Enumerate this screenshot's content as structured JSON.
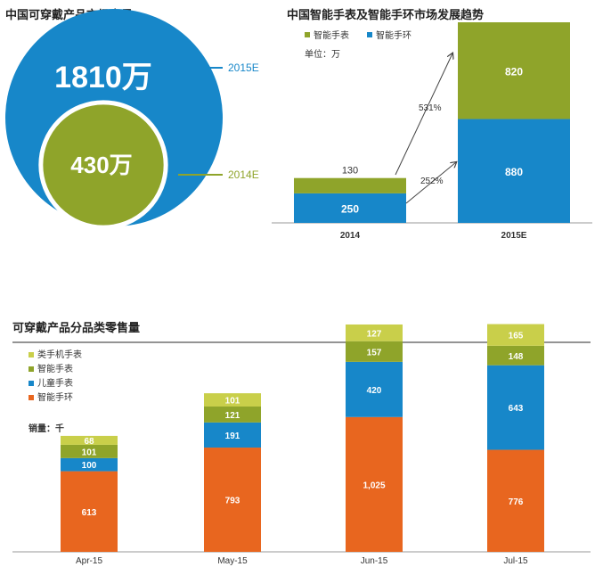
{
  "colors": {
    "blue": "#1787c9",
    "olive": "#8fa42a",
    "yellow_green": "#c9cf4a",
    "orange": "#e8661f",
    "axis": "#666666"
  },
  "chart_data": [
    {
      "type": "bubble",
      "title": "中国可穿戴产品市场容量",
      "series": [
        {
          "name": "2015E",
          "value": 1810,
          "value_label": "1810万",
          "color": "#1787c9"
        },
        {
          "name": "2014E",
          "value": 430,
          "value_label": "430万",
          "color": "#8fa42a"
        }
      ]
    },
    {
      "type": "bar",
      "stacked": true,
      "title": "中国智能手表及智能手环市场发展趋势",
      "unit_note": "单位：万",
      "categories": [
        "2014",
        "2015E"
      ],
      "series": [
        {
          "name": "智能手环",
          "values": [
            250,
            880
          ],
          "color": "#1787c9"
        },
        {
          "name": "智能手表",
          "values": [
            130,
            820
          ],
          "color": "#8fa42a"
        }
      ],
      "growth_annotations": [
        {
          "series": "智能手表",
          "label": "531%"
        },
        {
          "series": "智能手环",
          "label": "252%"
        }
      ],
      "legend_position": "top-left"
    },
    {
      "type": "bar",
      "stacked": true,
      "title": "可穿戴产品分品类零售量",
      "unit_note": "销量：千",
      "categories": [
        "Apr-15",
        "May-15",
        "Jun-15",
        "Jul-15"
      ],
      "series": [
        {
          "name": "智能手环",
          "values": [
            613,
            793,
            1025,
            776
          ],
          "labels": [
            "613",
            "793",
            "1,025",
            "776"
          ],
          "color": "#e8661f"
        },
        {
          "name": "儿童手表",
          "values": [
            100,
            191,
            420,
            643
          ],
          "labels": [
            "100",
            "191",
            "420",
            "643"
          ],
          "color": "#1787c9"
        },
        {
          "name": "智能手表",
          "values": [
            101,
            121,
            157,
            148
          ],
          "labels": [
            "101",
            "121",
            "157",
            "148"
          ],
          "color": "#8fa42a"
        },
        {
          "name": "类手机手表",
          "values": [
            68,
            101,
            127,
            165
          ],
          "labels": [
            "68",
            "101",
            "127",
            "165"
          ],
          "color": "#c9cf4a"
        }
      ],
      "legend_position": "top-left"
    }
  ]
}
